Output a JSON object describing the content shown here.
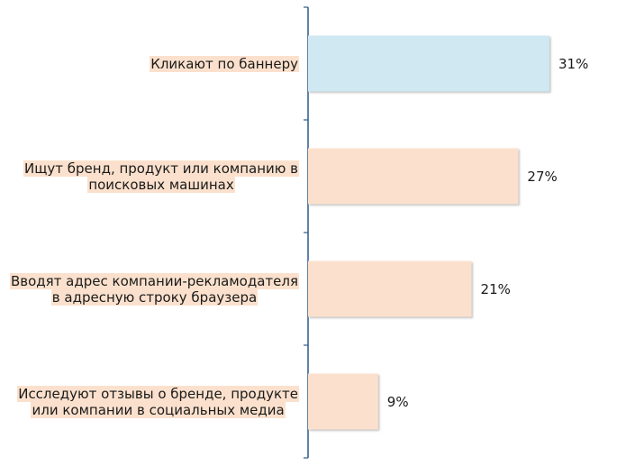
{
  "chart_data": {
    "type": "bar",
    "orientation": "horizontal",
    "categories": [
      "Кликают по баннеру",
      "Ищут бренд, продукт или компанию в\nпоисковых машинах",
      "Вводят адрес компании-рекламодателя\nв адресную строку браузера",
      "Исследуют отзывы о бренде, продукте\nили компании в социальных медиа"
    ],
    "values": [
      31,
      27,
      21,
      9
    ],
    "value_labels": [
      "31%",
      "27%",
      "21%",
      "9%"
    ],
    "unit": "%",
    "title": "",
    "xlabel": "",
    "ylabel": "",
    "xlim": [
      0,
      38
    ],
    "grid": false,
    "legend": "none",
    "colors": {
      "highlight_bar": "#cfe8f1",
      "bar": "#fbe1cd",
      "label_highlight": "#fbe1cd",
      "axis": "#2f5a8a"
    }
  }
}
